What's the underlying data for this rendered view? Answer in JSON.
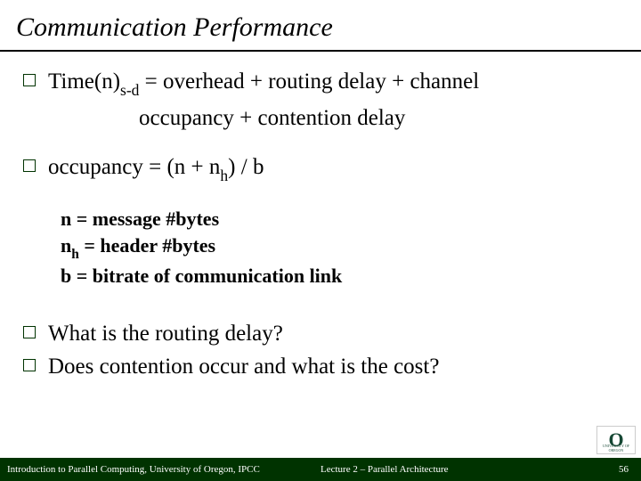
{
  "title": "Communication Performance",
  "bullets": {
    "b1_line1": "Time(n)",
    "b1_sub1": "s-d",
    "b1_rest1": " = overhead + routing delay + channel",
    "b1_cont": "occupancy + contention delay",
    "b2_line1": "occupancy = (n + n",
    "b2_sub1": "h",
    "b2_rest1": ") / b",
    "b3": "What is the routing delay?",
    "b4": "Does contention occur and what is the cost?"
  },
  "defs": {
    "d1": "n = message #bytes",
    "d2_pre": "n",
    "d2_sub": "h",
    "d2_post": " = header #bytes",
    "d3": "b = bitrate of communication link"
  },
  "footer": {
    "left": "Introduction to Parallel Computing, University of Oregon, IPCC",
    "center": "Lecture 2 – Parallel Architecture",
    "pagenum": "56"
  },
  "logo": {
    "letter": "O",
    "caption": "UNIVERSITY OF OREGON"
  },
  "colors": {
    "footer_bg": "#003300",
    "bullet_border": "#003300",
    "text": "#000000"
  }
}
